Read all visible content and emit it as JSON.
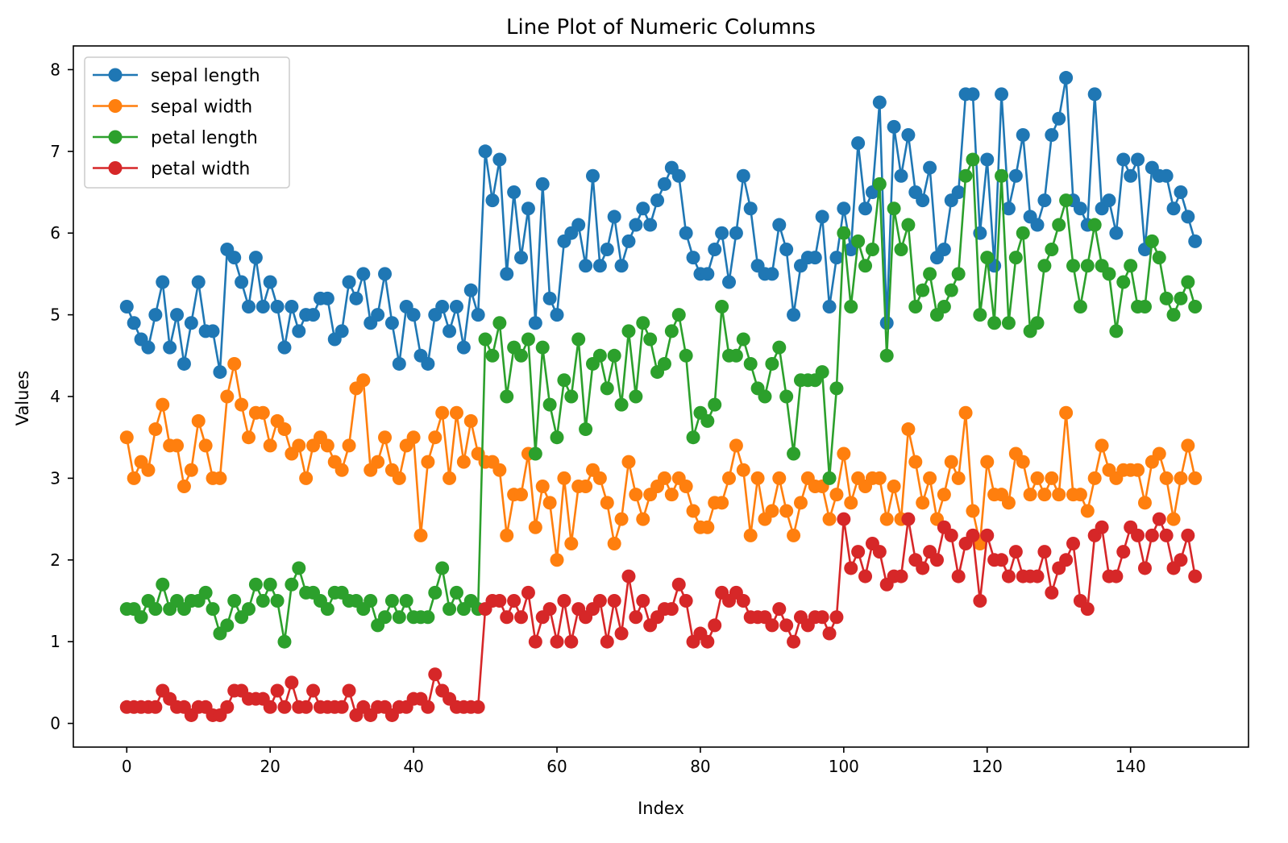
{
  "chart_data": {
    "type": "line",
    "title": "Line Plot of Numeric Columns",
    "xlabel": "Index",
    "ylabel": "Values",
    "xlim": [
      -7.45,
      156.45
    ],
    "ylim": [
      -0.29,
      8.29
    ],
    "xticks": [
      0,
      20,
      40,
      60,
      80,
      100,
      120,
      140
    ],
    "yticks": [
      0,
      1,
      2,
      3,
      4,
      5,
      6,
      7,
      8
    ],
    "grid": false,
    "legend_position": "upper-left",
    "marker": "circle",
    "series": [
      {
        "name": "sepal length",
        "color": "#1f77b4",
        "values": [
          5.1,
          4.9,
          4.7,
          4.6,
          5.0,
          5.4,
          4.6,
          5.0,
          4.4,
          4.9,
          5.4,
          4.8,
          4.8,
          4.3,
          5.8,
          5.7,
          5.4,
          5.1,
          5.7,
          5.1,
          5.4,
          5.1,
          4.6,
          5.1,
          4.8,
          5.0,
          5.0,
          5.2,
          5.2,
          4.7,
          4.8,
          5.4,
          5.2,
          5.5,
          4.9,
          5.0,
          5.5,
          4.9,
          4.4,
          5.1,
          5.0,
          4.5,
          4.4,
          5.0,
          5.1,
          4.8,
          5.1,
          4.6,
          5.3,
          5.0,
          7.0,
          6.4,
          6.9,
          5.5,
          6.5,
          5.7,
          6.3,
          4.9,
          6.6,
          5.2,
          5.0,
          5.9,
          6.0,
          6.1,
          5.6,
          6.7,
          5.6,
          5.8,
          6.2,
          5.6,
          5.9,
          6.1,
          6.3,
          6.1,
          6.4,
          6.6,
          6.8,
          6.7,
          6.0,
          5.7,
          5.5,
          5.5,
          5.8,
          6.0,
          5.4,
          6.0,
          6.7,
          6.3,
          5.6,
          5.5,
          5.5,
          6.1,
          5.8,
          5.0,
          5.6,
          5.7,
          5.7,
          6.2,
          5.1,
          5.7,
          6.3,
          5.8,
          7.1,
          6.3,
          6.5,
          7.6,
          4.9,
          7.3,
          6.7,
          7.2,
          6.5,
          6.4,
          6.8,
          5.7,
          5.8,
          6.4,
          6.5,
          7.7,
          7.7,
          6.0,
          6.9,
          5.6,
          7.7,
          6.3,
          6.7,
          7.2,
          6.2,
          6.1,
          6.4,
          7.2,
          7.4,
          7.9,
          6.4,
          6.3,
          6.1,
          7.7,
          6.3,
          6.4,
          6.0,
          6.9,
          6.7,
          6.9,
          5.8,
          6.8,
          6.7,
          6.7,
          6.3,
          6.5,
          6.2,
          5.9
        ]
      },
      {
        "name": "sepal width",
        "color": "#ff7f0e",
        "values": [
          3.5,
          3.0,
          3.2,
          3.1,
          3.6,
          3.9,
          3.4,
          3.4,
          2.9,
          3.1,
          3.7,
          3.4,
          3.0,
          3.0,
          4.0,
          4.4,
          3.9,
          3.5,
          3.8,
          3.8,
          3.4,
          3.7,
          3.6,
          3.3,
          3.4,
          3.0,
          3.4,
          3.5,
          3.4,
          3.2,
          3.1,
          3.4,
          4.1,
          4.2,
          3.1,
          3.2,
          3.5,
          3.1,
          3.0,
          3.4,
          3.5,
          2.3,
          3.2,
          3.5,
          3.8,
          3.0,
          3.8,
          3.2,
          3.7,
          3.3,
          3.2,
          3.2,
          3.1,
          2.3,
          2.8,
          2.8,
          3.3,
          2.4,
          2.9,
          2.7,
          2.0,
          3.0,
          2.2,
          2.9,
          2.9,
          3.1,
          3.0,
          2.7,
          2.2,
          2.5,
          3.2,
          2.8,
          2.5,
          2.8,
          2.9,
          3.0,
          2.8,
          3.0,
          2.9,
          2.6,
          2.4,
          2.4,
          2.7,
          2.7,
          3.0,
          3.4,
          3.1,
          2.3,
          3.0,
          2.5,
          2.6,
          3.0,
          2.6,
          2.3,
          2.7,
          3.0,
          2.9,
          2.9,
          2.5,
          2.8,
          3.3,
          2.7,
          3.0,
          2.9,
          3.0,
          3.0,
          2.5,
          2.9,
          2.5,
          3.6,
          3.2,
          2.7,
          3.0,
          2.5,
          2.8,
          3.2,
          3.0,
          3.8,
          2.6,
          2.2,
          3.2,
          2.8,
          2.8,
          2.7,
          3.3,
          3.2,
          2.8,
          3.0,
          2.8,
          3.0,
          2.8,
          3.8,
          2.8,
          2.8,
          2.6,
          3.0,
          3.4,
          3.1,
          3.0,
          3.1,
          3.1,
          3.1,
          2.7,
          3.2,
          3.3,
          3.0,
          2.5,
          3.0,
          3.4,
          3.0
        ]
      },
      {
        "name": "petal length",
        "color": "#2ca02c",
        "values": [
          1.4,
          1.4,
          1.3,
          1.5,
          1.4,
          1.7,
          1.4,
          1.5,
          1.4,
          1.5,
          1.5,
          1.6,
          1.4,
          1.1,
          1.2,
          1.5,
          1.3,
          1.4,
          1.7,
          1.5,
          1.7,
          1.5,
          1.0,
          1.7,
          1.9,
          1.6,
          1.6,
          1.5,
          1.4,
          1.6,
          1.6,
          1.5,
          1.5,
          1.4,
          1.5,
          1.2,
          1.3,
          1.5,
          1.3,
          1.5,
          1.3,
          1.3,
          1.3,
          1.6,
          1.9,
          1.4,
          1.6,
          1.4,
          1.5,
          1.4,
          4.7,
          4.5,
          4.9,
          4.0,
          4.6,
          4.5,
          4.7,
          3.3,
          4.6,
          3.9,
          3.5,
          4.2,
          4.0,
          4.7,
          3.6,
          4.4,
          4.5,
          4.1,
          4.5,
          3.9,
          4.8,
          4.0,
          4.9,
          4.7,
          4.3,
          4.4,
          4.8,
          5.0,
          4.5,
          3.5,
          3.8,
          3.7,
          3.9,
          5.1,
          4.5,
          4.5,
          4.7,
          4.4,
          4.1,
          4.0,
          4.4,
          4.6,
          4.0,
          3.3,
          4.2,
          4.2,
          4.2,
          4.3,
          3.0,
          4.1,
          6.0,
          5.1,
          5.9,
          5.6,
          5.8,
          6.6,
          4.5,
          6.3,
          5.8,
          6.1,
          5.1,
          5.3,
          5.5,
          5.0,
          5.1,
          5.3,
          5.5,
          6.7,
          6.9,
          5.0,
          5.7,
          4.9,
          6.7,
          4.9,
          5.7,
          6.0,
          4.8,
          4.9,
          5.6,
          5.8,
          6.1,
          6.4,
          5.6,
          5.1,
          5.6,
          6.1,
          5.6,
          5.5,
          4.8,
          5.4,
          5.6,
          5.1,
          5.1,
          5.9,
          5.7,
          5.2,
          5.0,
          5.2,
          5.4,
          5.1
        ]
      },
      {
        "name": "petal width",
        "color": "#d62728",
        "values": [
          0.2,
          0.2,
          0.2,
          0.2,
          0.2,
          0.4,
          0.3,
          0.2,
          0.2,
          0.1,
          0.2,
          0.2,
          0.1,
          0.1,
          0.2,
          0.4,
          0.4,
          0.3,
          0.3,
          0.3,
          0.2,
          0.4,
          0.2,
          0.5,
          0.2,
          0.2,
          0.4,
          0.2,
          0.2,
          0.2,
          0.2,
          0.4,
          0.1,
          0.2,
          0.1,
          0.2,
          0.2,
          0.1,
          0.2,
          0.2,
          0.3,
          0.3,
          0.2,
          0.6,
          0.4,
          0.3,
          0.2,
          0.2,
          0.2,
          0.2,
          1.4,
          1.5,
          1.5,
          1.3,
          1.5,
          1.3,
          1.6,
          1.0,
          1.3,
          1.4,
          1.0,
          1.5,
          1.0,
          1.4,
          1.3,
          1.4,
          1.5,
          1.0,
          1.5,
          1.1,
          1.8,
          1.3,
          1.5,
          1.2,
          1.3,
          1.4,
          1.4,
          1.7,
          1.5,
          1.0,
          1.1,
          1.0,
          1.2,
          1.6,
          1.5,
          1.6,
          1.5,
          1.3,
          1.3,
          1.3,
          1.2,
          1.4,
          1.2,
          1.0,
          1.3,
          1.2,
          1.3,
          1.3,
          1.1,
          1.3,
          2.5,
          1.9,
          2.1,
          1.8,
          2.2,
          2.1,
          1.7,
          1.8,
          1.8,
          2.5,
          2.0,
          1.9,
          2.1,
          2.0,
          2.4,
          2.3,
          1.8,
          2.2,
          2.3,
          1.5,
          2.3,
          2.0,
          2.0,
          1.8,
          2.1,
          1.8,
          1.8,
          1.8,
          2.1,
          1.6,
          1.9,
          2.0,
          2.2,
          1.5,
          1.4,
          2.3,
          2.4,
          1.8,
          1.8,
          2.1,
          2.4,
          2.3,
          1.9,
          2.3,
          2.5,
          2.3,
          1.9,
          2.0,
          2.3,
          1.8
        ]
      }
    ]
  }
}
